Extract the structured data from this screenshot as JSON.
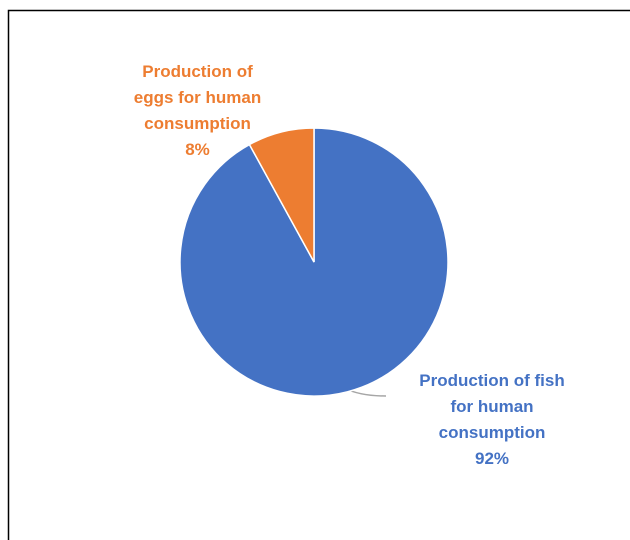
{
  "chart_data": {
    "type": "pie",
    "categories": [
      "Production of fish for human consumption",
      "Production of eggs for human consumption"
    ],
    "values": [
      92,
      8
    ],
    "value_labels": [
      "92%",
      "8%"
    ],
    "colors": [
      "#4472c4",
      "#ed7d31"
    ]
  }
}
